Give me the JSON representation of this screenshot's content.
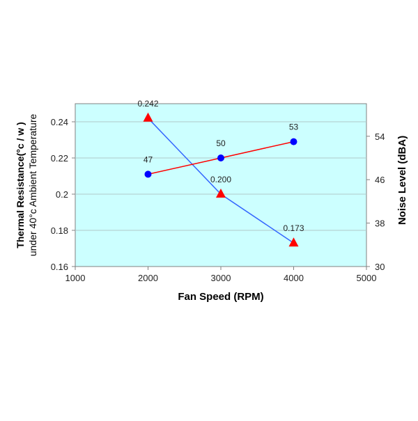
{
  "chart_data": {
    "type": "line",
    "title": "",
    "xlabel": "Fan Speed (RPM)",
    "ylabel": [
      "Thermal Resistance(°c / w )",
      "under 40°c  Ambient Temperature"
    ],
    "y2label": "Noise Level (dBA)",
    "xlim": [
      1000,
      5000
    ],
    "ylim": [
      0.16,
      0.25
    ],
    "y2lim": [
      30,
      60
    ],
    "xticks": [
      "1000",
      "2000",
      "3000",
      "4000",
      "5000"
    ],
    "yticks": [
      "0.16",
      "0.18",
      "0.2",
      "0.22",
      "0.24"
    ],
    "y2ticks": [
      "30",
      "38",
      "46",
      "54"
    ],
    "grid": true,
    "background": "#ccffff",
    "series": [
      {
        "name": "Thermal Resistance",
        "axis": "left",
        "x": [
          2000,
          3000,
          4000
        ],
        "y": [
          0.242,
          0.2,
          0.173
        ],
        "labels": [
          "0.242",
          "0.200",
          "0.173"
        ],
        "line_color": "#3366ff",
        "marker": "triangle",
        "marker_color": "#ff0000"
      },
      {
        "name": "Noise Level",
        "axis": "right",
        "x": [
          2000,
          3000,
          4000
        ],
        "y": [
          47,
          50,
          53
        ],
        "labels": [
          "47",
          "50",
          "53"
        ],
        "line_color": "#ff0000",
        "marker": "circle",
        "marker_color": "#0000ff"
      }
    ]
  }
}
